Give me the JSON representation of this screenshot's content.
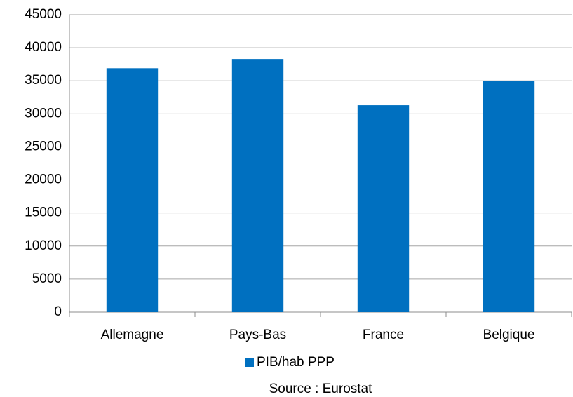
{
  "chart_data": {
    "type": "bar",
    "categories": [
      "Allemagne",
      "Pays-Bas",
      "France",
      "Belgique"
    ],
    "series": [
      {
        "name": "PIB/hab PPP",
        "color": "#0070c0",
        "values": [
          36900,
          38300,
          31300,
          35000
        ]
      }
    ],
    "ylim": [
      0,
      45000
    ],
    "yticks": [
      0,
      5000,
      10000,
      15000,
      20000,
      25000,
      30000,
      35000,
      40000,
      45000
    ],
    "grid": true,
    "legend": "bottom",
    "source": "Source : Eurostat"
  }
}
